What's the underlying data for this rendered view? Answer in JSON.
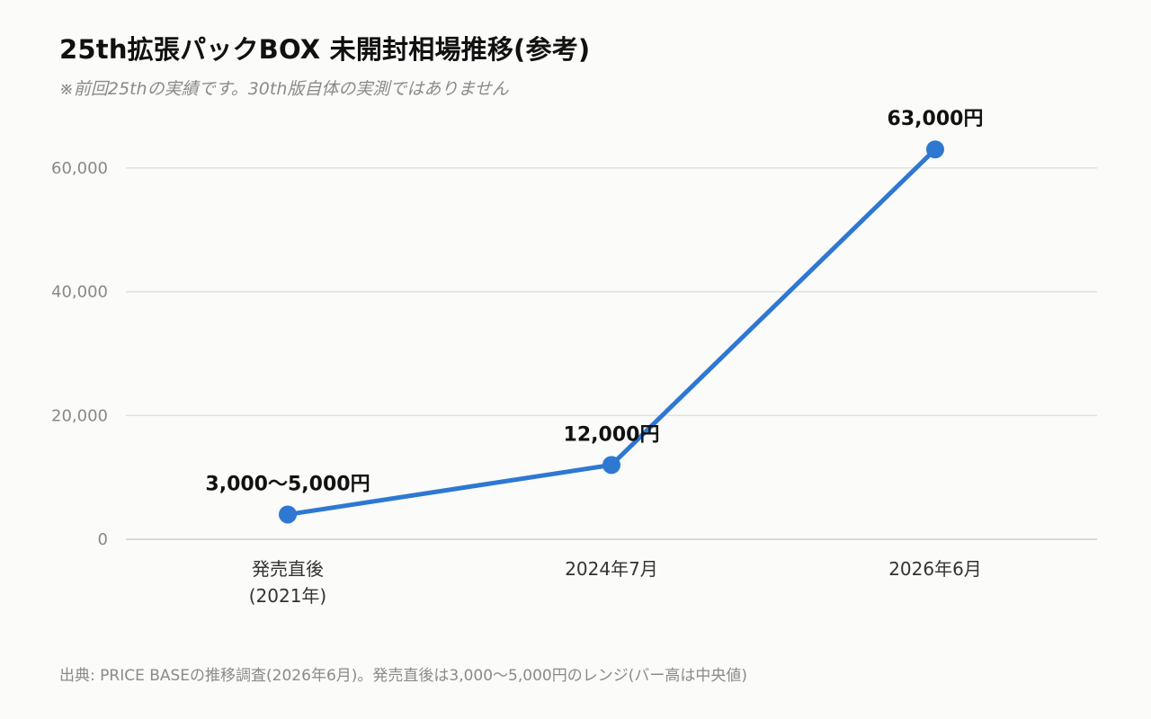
{
  "chart_data": {
    "type": "line",
    "title": "25th拡張パックBOX 未開封相場推移(参考)",
    "subtitle": "※前回25thの実績です。30th版自体の実測ではありません",
    "categories": [
      "発売直後\n(2021年)",
      "2024年7月",
      "2026年6月"
    ],
    "values": [
      4000,
      12000,
      63000
    ],
    "data_labels": [
      "3,000〜5,000円",
      "12,000円",
      "63,000円"
    ],
    "y_ticks": [
      0,
      20000,
      40000,
      60000
    ],
    "y_tick_labels": [
      "0",
      "20,000",
      "40,000",
      "60,000"
    ],
    "ylim": [
      0,
      70000
    ],
    "grid": true,
    "line_color": "#2e78d2",
    "source": "出典: PRICE BASEの推移調査(2026年6月)。発売直後は3,000〜5,000円のレンジ(バー高は中央値)"
  }
}
